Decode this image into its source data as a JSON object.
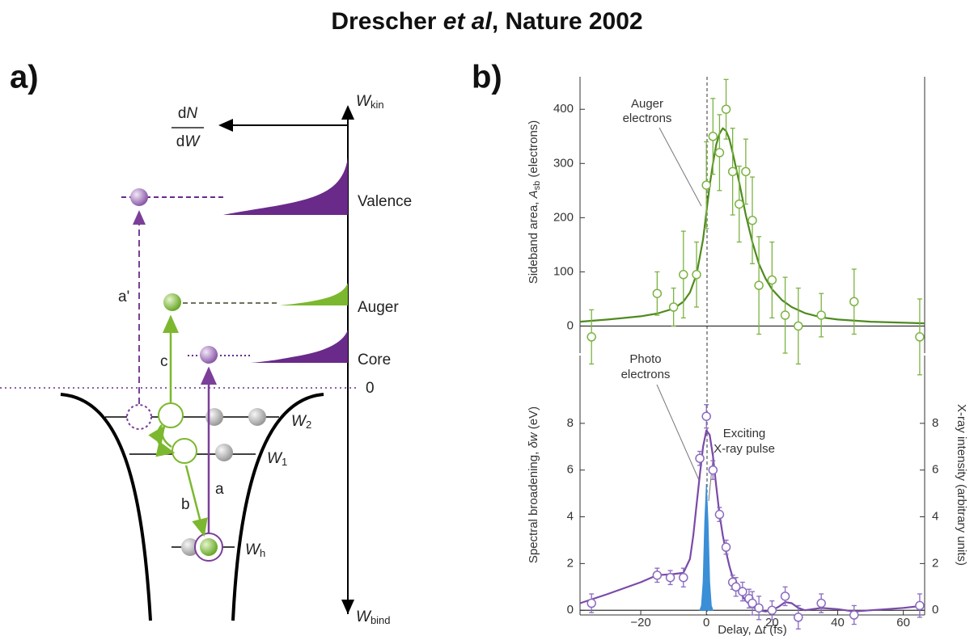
{
  "title": [
    "Drescher ",
    "et al",
    ", Nature 2002"
  ],
  "panel_a": {
    "label": "a)",
    "dNdW": {
      "numerator": [
        "d",
        "N"
      ],
      "denominator": [
        "d",
        "W"
      ]
    },
    "w_kin": [
      "W",
      "kin"
    ],
    "w_bind": [
      "W",
      "bind"
    ],
    "peaks": [
      "Valence",
      "Auger",
      "Core"
    ],
    "zero": "0",
    "arrows": [
      "a'",
      "c",
      "b",
      "a"
    ],
    "levels": [
      [
        "W",
        "2"
      ],
      [
        "W",
        "1"
      ],
      [
        "W",
        "h"
      ]
    ]
  },
  "panel_b": {
    "label": "b)"
  },
  "chart_data": [
    {
      "type": "scatter",
      "ylabel": [
        "Sideband area, ",
        "A",
        "sb",
        " (electrons)"
      ],
      "annotation": [
        "Auger",
        "electrons"
      ],
      "xlim": [
        -38.5,
        66.5
      ],
      "ylim": [
        -50,
        460
      ],
      "yticks": [
        0,
        100,
        200,
        300,
        400
      ],
      "color": "#7cb342",
      "x": [
        -35,
        -15,
        -10,
        -7,
        -3,
        0,
        2,
        4,
        6,
        8,
        10,
        12,
        14,
        16,
        20,
        24,
        28,
        35,
        45,
        65
      ],
      "y": [
        -20,
        60,
        35,
        95,
        95,
        260,
        350,
        320,
        400,
        285,
        225,
        285,
        195,
        75,
        85,
        20,
        0,
        20,
        45,
        -20
      ],
      "errors": [
        50,
        40,
        35,
        80,
        60,
        80,
        70,
        70,
        55,
        80,
        70,
        60,
        80,
        90,
        70,
        70,
        70,
        40,
        60,
        70
      ],
      "fit": {
        "color": "#4f8a1f",
        "x": [
          -38.5,
          -30,
          -20,
          -15,
          -10,
          -7,
          -5,
          -3,
          -1,
          0,
          1,
          2,
          3,
          4,
          5,
          6,
          7,
          8,
          10,
          12,
          14,
          16,
          18,
          20,
          23,
          26,
          30,
          35,
          40,
          50,
          66.5
        ],
        "y": [
          8,
          12,
          18,
          23,
          32,
          45,
          62,
          95,
          160,
          210,
          260,
          300,
          335,
          355,
          365,
          360,
          345,
          320,
          265,
          205,
          155,
          115,
          88,
          68,
          48,
          35,
          24,
          16,
          12,
          8,
          5
        ]
      }
    },
    {
      "type": "scatter",
      "ylabel": [
        "Spectral broadening, ",
        "δw",
        " (eV)"
      ],
      "y2label": "X-ray intensity (arbitrary units)",
      "xlabel": [
        "Delay, Δ",
        "t",
        " (fs)"
      ],
      "annotations": [
        [
          "Photo",
          "electrons"
        ],
        [
          "Exciting",
          "X-ray pulse"
        ]
      ],
      "xlim": [
        -38.5,
        66.5
      ],
      "xticks": [
        {
          "value": -20,
          "label": "−20"
        },
        0,
        20,
        40,
        60
      ],
      "ylim": [
        -0.2,
        10.9
      ],
      "yticks": [
        0,
        2,
        4,
        6,
        8
      ],
      "y2lim": [
        -0.2,
        10.9
      ],
      "y2ticks": [
        0,
        2,
        4,
        6,
        8
      ],
      "color": "#8a6bbf",
      "x": [
        -35,
        -15,
        -11,
        -7,
        -2,
        0,
        2,
        4,
        6,
        8,
        9,
        11,
        13,
        14,
        16,
        20,
        24,
        28,
        35,
        45,
        65
      ],
      "y": [
        0.3,
        1.5,
        1.4,
        1.4,
        6.5,
        8.3,
        6.0,
        4.1,
        2.7,
        1.2,
        1.0,
        0.8,
        0.5,
        0.3,
        0.1,
        0.0,
        0.6,
        -0.3,
        0.3,
        -0.2,
        0.2
      ],
      "errors": [
        0.4,
        0.3,
        0.3,
        0.4,
        0.3,
        0.5,
        0.4,
        0.3,
        0.3,
        0.3,
        0.4,
        0.4,
        0.4,
        0.5,
        0.5,
        0.4,
        0.4,
        0.5,
        0.4,
        0.4,
        0.5
      ],
      "fit": {
        "color": "#7a4aa8",
        "x": [
          -38.5,
          -30,
          -20,
          -15,
          -10,
          -7,
          -5,
          -4,
          -3,
          -2,
          -1,
          0,
          1,
          2,
          3,
          4,
          5,
          6,
          7,
          8,
          10,
          12,
          14,
          16,
          18,
          20,
          22,
          24,
          26,
          28,
          30,
          35,
          40,
          45,
          50,
          55,
          60,
          66.5
        ],
        "y": [
          0.3,
          0.7,
          1.2,
          1.5,
          1.55,
          1.6,
          2.2,
          3.2,
          4.5,
          5.8,
          7.0,
          7.7,
          7.5,
          6.6,
          5.3,
          4.1,
          3.2,
          2.5,
          1.9,
          1.4,
          0.8,
          0.4,
          0.15,
          0.0,
          -0.05,
          0.0,
          0.15,
          0.35,
          0.3,
          0.1,
          0.0,
          0.1,
          0.05,
          -0.05,
          0.0,
          0.05,
          0.1,
          0.2
        ]
      },
      "pulse": {
        "axis": "y2",
        "color": "#3a8fd6",
        "x": [
          -2,
          -1.5,
          -1,
          -0.5,
          0,
          0.5,
          1,
          1.5,
          2
        ],
        "y": [
          0,
          0.2,
          1.2,
          3.8,
          5.4,
          3.8,
          1.2,
          0.2,
          0
        ]
      }
    }
  ]
}
